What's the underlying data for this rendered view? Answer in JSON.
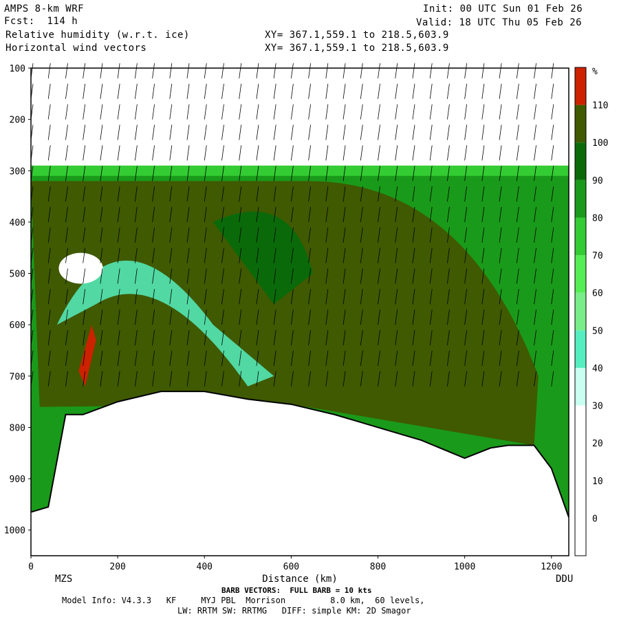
{
  "header": {
    "model": "AMPS 8-km WRF",
    "fcst": "Fcst:  114 h",
    "field1": "Relative humidity (w.r.t. ice)",
    "field2": "Horizontal wind vectors",
    "init": "Init: 00 UTC Sun 01 Feb 26",
    "valid": "Valid: 18 UTC Thu 05 Feb 26",
    "xy1": "XY= 367.1,559.1 to 218.5,603.9",
    "xy2": "XY= 367.1,559.1 to 218.5,603.9"
  },
  "footer": {
    "barb_note": "BARB VECTORS:  FULL BARB = 10 kts",
    "model_info": "Model Info: V4.3.3   KF     MYJ PBL  Morrison         8.0 km,  60 levels,",
    "physics": "LW: RRTM SW: RRTMG   DIFF: simple KM: 2D Smagor"
  },
  "chart_data": {
    "type": "heatmap",
    "xlabel": "Distance (km)",
    "ylabel": "",
    "x_ticks": [
      0,
      200,
      400,
      600,
      800,
      1000,
      1200
    ],
    "y_ticks": [
      100,
      200,
      300,
      400,
      500,
      600,
      700,
      800,
      900,
      1000
    ],
    "xlim": [
      0,
      1240
    ],
    "ylim": [
      1050,
      100
    ],
    "endpoints": {
      "left": "MZS",
      "right": "DDU"
    },
    "colorbar": {
      "unit": "%",
      "levels": [
        110,
        100,
        90,
        80,
        70,
        60,
        50,
        40,
        30,
        20,
        10,
        0
      ],
      "colors": [
        "#cc2200",
        "#3f5a00",
        "#0a6a0a",
        "#1a9a1a",
        "#33cc33",
        "#55ee55",
        "#77ee88",
        "#55eec0",
        "#c8fff0",
        "#ffffff",
        "#ffffff",
        "#ffffff",
        "#ffffff"
      ]
    },
    "terrain_pressure": [
      [
        0,
        965
      ],
      [
        40,
        955
      ],
      [
        80,
        775
      ],
      [
        120,
        775
      ],
      [
        200,
        750
      ],
      [
        300,
        730
      ],
      [
        400,
        730
      ],
      [
        500,
        745
      ],
      [
        600,
        755
      ],
      [
        700,
        775
      ],
      [
        800,
        800
      ],
      [
        900,
        825
      ],
      [
        1000,
        860
      ],
      [
        1060,
        840
      ],
      [
        1100,
        835
      ],
      [
        1160,
        835
      ],
      [
        1200,
        880
      ],
      [
        1240,
        975
      ]
    ],
    "cloud_top_pressure": 290,
    "dry_pocket": {
      "x": [
        80,
        150
      ],
      "p": [
        460,
        520
      ]
    }
  }
}
